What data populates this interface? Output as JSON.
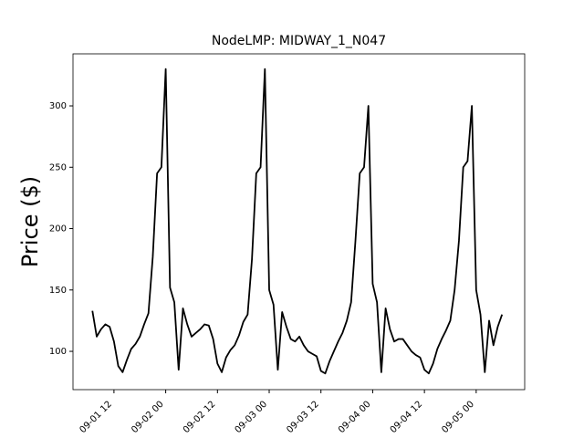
{
  "chart_data": {
    "type": "line",
    "title": "NodeLMP: MIDWAY_1_N047",
    "ylabel": "Price ($)",
    "x": [
      "09-01 07",
      "09-01 08",
      "09-01 09",
      "09-01 10",
      "09-01 11",
      "09-01 12",
      "09-01 13",
      "09-01 14",
      "09-01 15",
      "09-01 16",
      "09-01 17",
      "09-01 18",
      "09-01 19",
      "09-01 20",
      "09-01 21",
      "09-01 22",
      "09-01 23",
      "09-02 00",
      "09-02 01",
      "09-02 02",
      "09-02 03",
      "09-02 04",
      "09-02 05",
      "09-02 06",
      "09-02 07",
      "09-02 08",
      "09-02 09",
      "09-02 10",
      "09-02 11",
      "09-02 12",
      "09-02 13",
      "09-02 14",
      "09-02 15",
      "09-02 16",
      "09-02 17",
      "09-02 18",
      "09-02 19",
      "09-02 20",
      "09-02 21",
      "09-02 22",
      "09-02 23",
      "09-03 00",
      "09-03 01",
      "09-03 02",
      "09-03 03",
      "09-03 04",
      "09-03 05",
      "09-03 06",
      "09-03 07",
      "09-03 08",
      "09-03 09",
      "09-03 10",
      "09-03 11",
      "09-03 12",
      "09-03 13",
      "09-03 14",
      "09-03 15",
      "09-03 16",
      "09-03 17",
      "09-03 18",
      "09-03 19",
      "09-03 20",
      "09-03 21",
      "09-03 22",
      "09-03 23",
      "09-04 00",
      "09-04 01",
      "09-04 02",
      "09-04 03",
      "09-04 04",
      "09-04 05",
      "09-04 06",
      "09-04 07",
      "09-04 08",
      "09-04 09",
      "09-04 10",
      "09-04 11",
      "09-04 12",
      "09-04 13",
      "09-04 14",
      "09-04 15",
      "09-04 16",
      "09-04 17",
      "09-04 18",
      "09-04 19",
      "09-04 20",
      "09-04 21",
      "09-04 22",
      "09-04 23",
      "09-05 00",
      "09-05 01",
      "09-05 02",
      "09-05 03",
      "09-05 04",
      "09-05 05",
      "09-05 06"
    ],
    "series": [
      {
        "name": "Price",
        "color": "#000000",
        "values": [
          133,
          112,
          118,
          122,
          120,
          108,
          88,
          83,
          93,
          102,
          106,
          112,
          122,
          131,
          177,
          245,
          250,
          330,
          152,
          140,
          85,
          135,
          122,
          112,
          115,
          118,
          122,
          121,
          110,
          90,
          83,
          95,
          101,
          105,
          113,
          124,
          130,
          175,
          245,
          250,
          330,
          150,
          138,
          85,
          132,
          120,
          110,
          108,
          112,
          105,
          100,
          98,
          96,
          84,
          82,
          92,
          100,
          108,
          115,
          125,
          140,
          190,
          245,
          250,
          300,
          155,
          140,
          83,
          135,
          118,
          108,
          110,
          110,
          105,
          100,
          97,
          95,
          85,
          82,
          90,
          102,
          110,
          117,
          125,
          150,
          190,
          250,
          255,
          300,
          150,
          130,
          83,
          125,
          105,
          120,
          130
        ]
      }
    ],
    "xlim": [
      "09-01 02:30",
      "09-05 11:15"
    ],
    "xticks": [
      "09-01 12",
      "09-02 00",
      "09-02 12",
      "09-03 00",
      "09-03 12",
      "09-04 00",
      "09-04 12",
      "09-05 00"
    ],
    "ylim": [
      68.8,
      342.4
    ],
    "yticks": [
      100,
      150,
      200,
      250,
      300
    ]
  }
}
